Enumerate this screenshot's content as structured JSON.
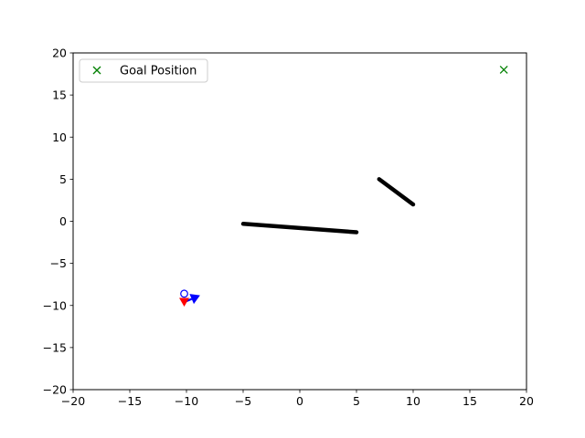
{
  "chart_data": {
    "type": "scatter",
    "title": "",
    "xlabel": "",
    "ylabel": "",
    "xlim": [
      -20,
      20
    ],
    "ylim": [
      -20,
      20
    ],
    "xticks": [
      -20,
      -15,
      -10,
      -5,
      0,
      5,
      10,
      15,
      20
    ],
    "yticks": [
      -20,
      -15,
      -10,
      -5,
      0,
      5,
      10,
      15,
      20
    ],
    "xtick_labels": [
      "−20",
      "−15",
      "−10",
      "−5",
      "0",
      "5",
      "10",
      "15",
      "20"
    ],
    "ytick_labels": [
      "−20",
      "−15",
      "−10",
      "−5",
      "0",
      "5",
      "10",
      "15",
      "20"
    ],
    "grid": false,
    "legend": {
      "placement": "top-left",
      "entries": [
        "Goal Position"
      ]
    },
    "series": [
      {
        "name": "Goal Position",
        "marker": "x",
        "color": "#008000",
        "points": [
          [
            18,
            18
          ]
        ]
      },
      {
        "marker": "line",
        "color": "#000000",
        "points": [
          [
            -5,
            -0.3
          ],
          [
            5,
            -1.3
          ]
        ]
      },
      {
        "marker": "line",
        "color": "#000000",
        "points": [
          [
            7,
            5
          ],
          [
            10,
            2
          ]
        ]
      },
      {
        "marker": "open-circle",
        "color": "#0000ff",
        "points": [
          [
            -10.2,
            -8.6
          ]
        ]
      },
      {
        "marker": "arrow",
        "color": "#0000ff",
        "points": [
          [
            -10.2,
            -9.6
          ]
        ],
        "to": [
          [
            -8.8,
            -8.8
          ]
        ]
      },
      {
        "marker": "triangle-down",
        "color": "#ff0000",
        "points": [
          [
            -10.2,
            -9.6
          ]
        ]
      }
    ]
  }
}
